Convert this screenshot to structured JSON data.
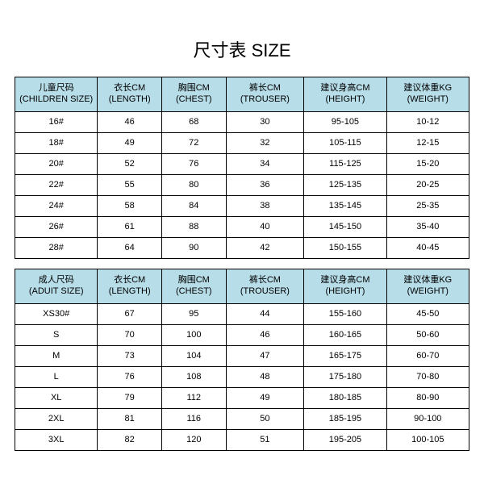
{
  "title": "尺寸表 SIZE",
  "table1": {
    "header_bg": "#b7dde8",
    "columns": [
      {
        "zh": "儿童尺码",
        "en": "(CHILDREN SIZE)"
      },
      {
        "zh": "衣长CM",
        "en": "(LENGTH)"
      },
      {
        "zh": "胸围CM",
        "en": "(CHEST)"
      },
      {
        "zh": "裤长CM",
        "en": "(TROUSER)"
      },
      {
        "zh": "建议身高CM",
        "en": "(HEIGHT)"
      },
      {
        "zh": "建议体重KG",
        "en": "(WEIGHT)"
      }
    ],
    "rows": [
      [
        "16#",
        "46",
        "68",
        "30",
        "95-105",
        "10-12"
      ],
      [
        "18#",
        "49",
        "72",
        "32",
        "105-115",
        "12-15"
      ],
      [
        "20#",
        "52",
        "76",
        "34",
        "115-125",
        "15-20"
      ],
      [
        "22#",
        "55",
        "80",
        "36",
        "125-135",
        "20-25"
      ],
      [
        "24#",
        "58",
        "84",
        "38",
        "135-145",
        "25-35"
      ],
      [
        "26#",
        "61",
        "88",
        "40",
        "145-150",
        "35-40"
      ],
      [
        "28#",
        "64",
        "90",
        "42",
        "150-155",
        "40-45"
      ]
    ]
  },
  "table2": {
    "header_bg": "#b7dde8",
    "columns": [
      {
        "zh": "成人尺码",
        "en": "(ADUIT SIZE)"
      },
      {
        "zh": "衣长CM",
        "en": "(LENGTH)"
      },
      {
        "zh": "胸围CM",
        "en": "(CHEST)"
      },
      {
        "zh": "裤长CM",
        "en": "(TROUSER)"
      },
      {
        "zh": "建议身高CM",
        "en": "(HEIGHT)"
      },
      {
        "zh": "建议体重KG",
        "en": "(WEIGHT)"
      }
    ],
    "rows": [
      [
        "XS30#",
        "67",
        "95",
        "44",
        "155-160",
        "45-50"
      ],
      [
        "S",
        "70",
        "100",
        "46",
        "160-165",
        "50-60"
      ],
      [
        "M",
        "73",
        "104",
        "47",
        "165-175",
        "60-70"
      ],
      [
        "L",
        "76",
        "108",
        "48",
        "175-180",
        "70-80"
      ],
      [
        "XL",
        "79",
        "112",
        "49",
        "180-185",
        "80-90"
      ],
      [
        "2XL",
        "81",
        "116",
        "50",
        "185-195",
        "90-100"
      ],
      [
        "3XL",
        "82",
        "120",
        "51",
        "195-205",
        "100-105"
      ]
    ]
  }
}
